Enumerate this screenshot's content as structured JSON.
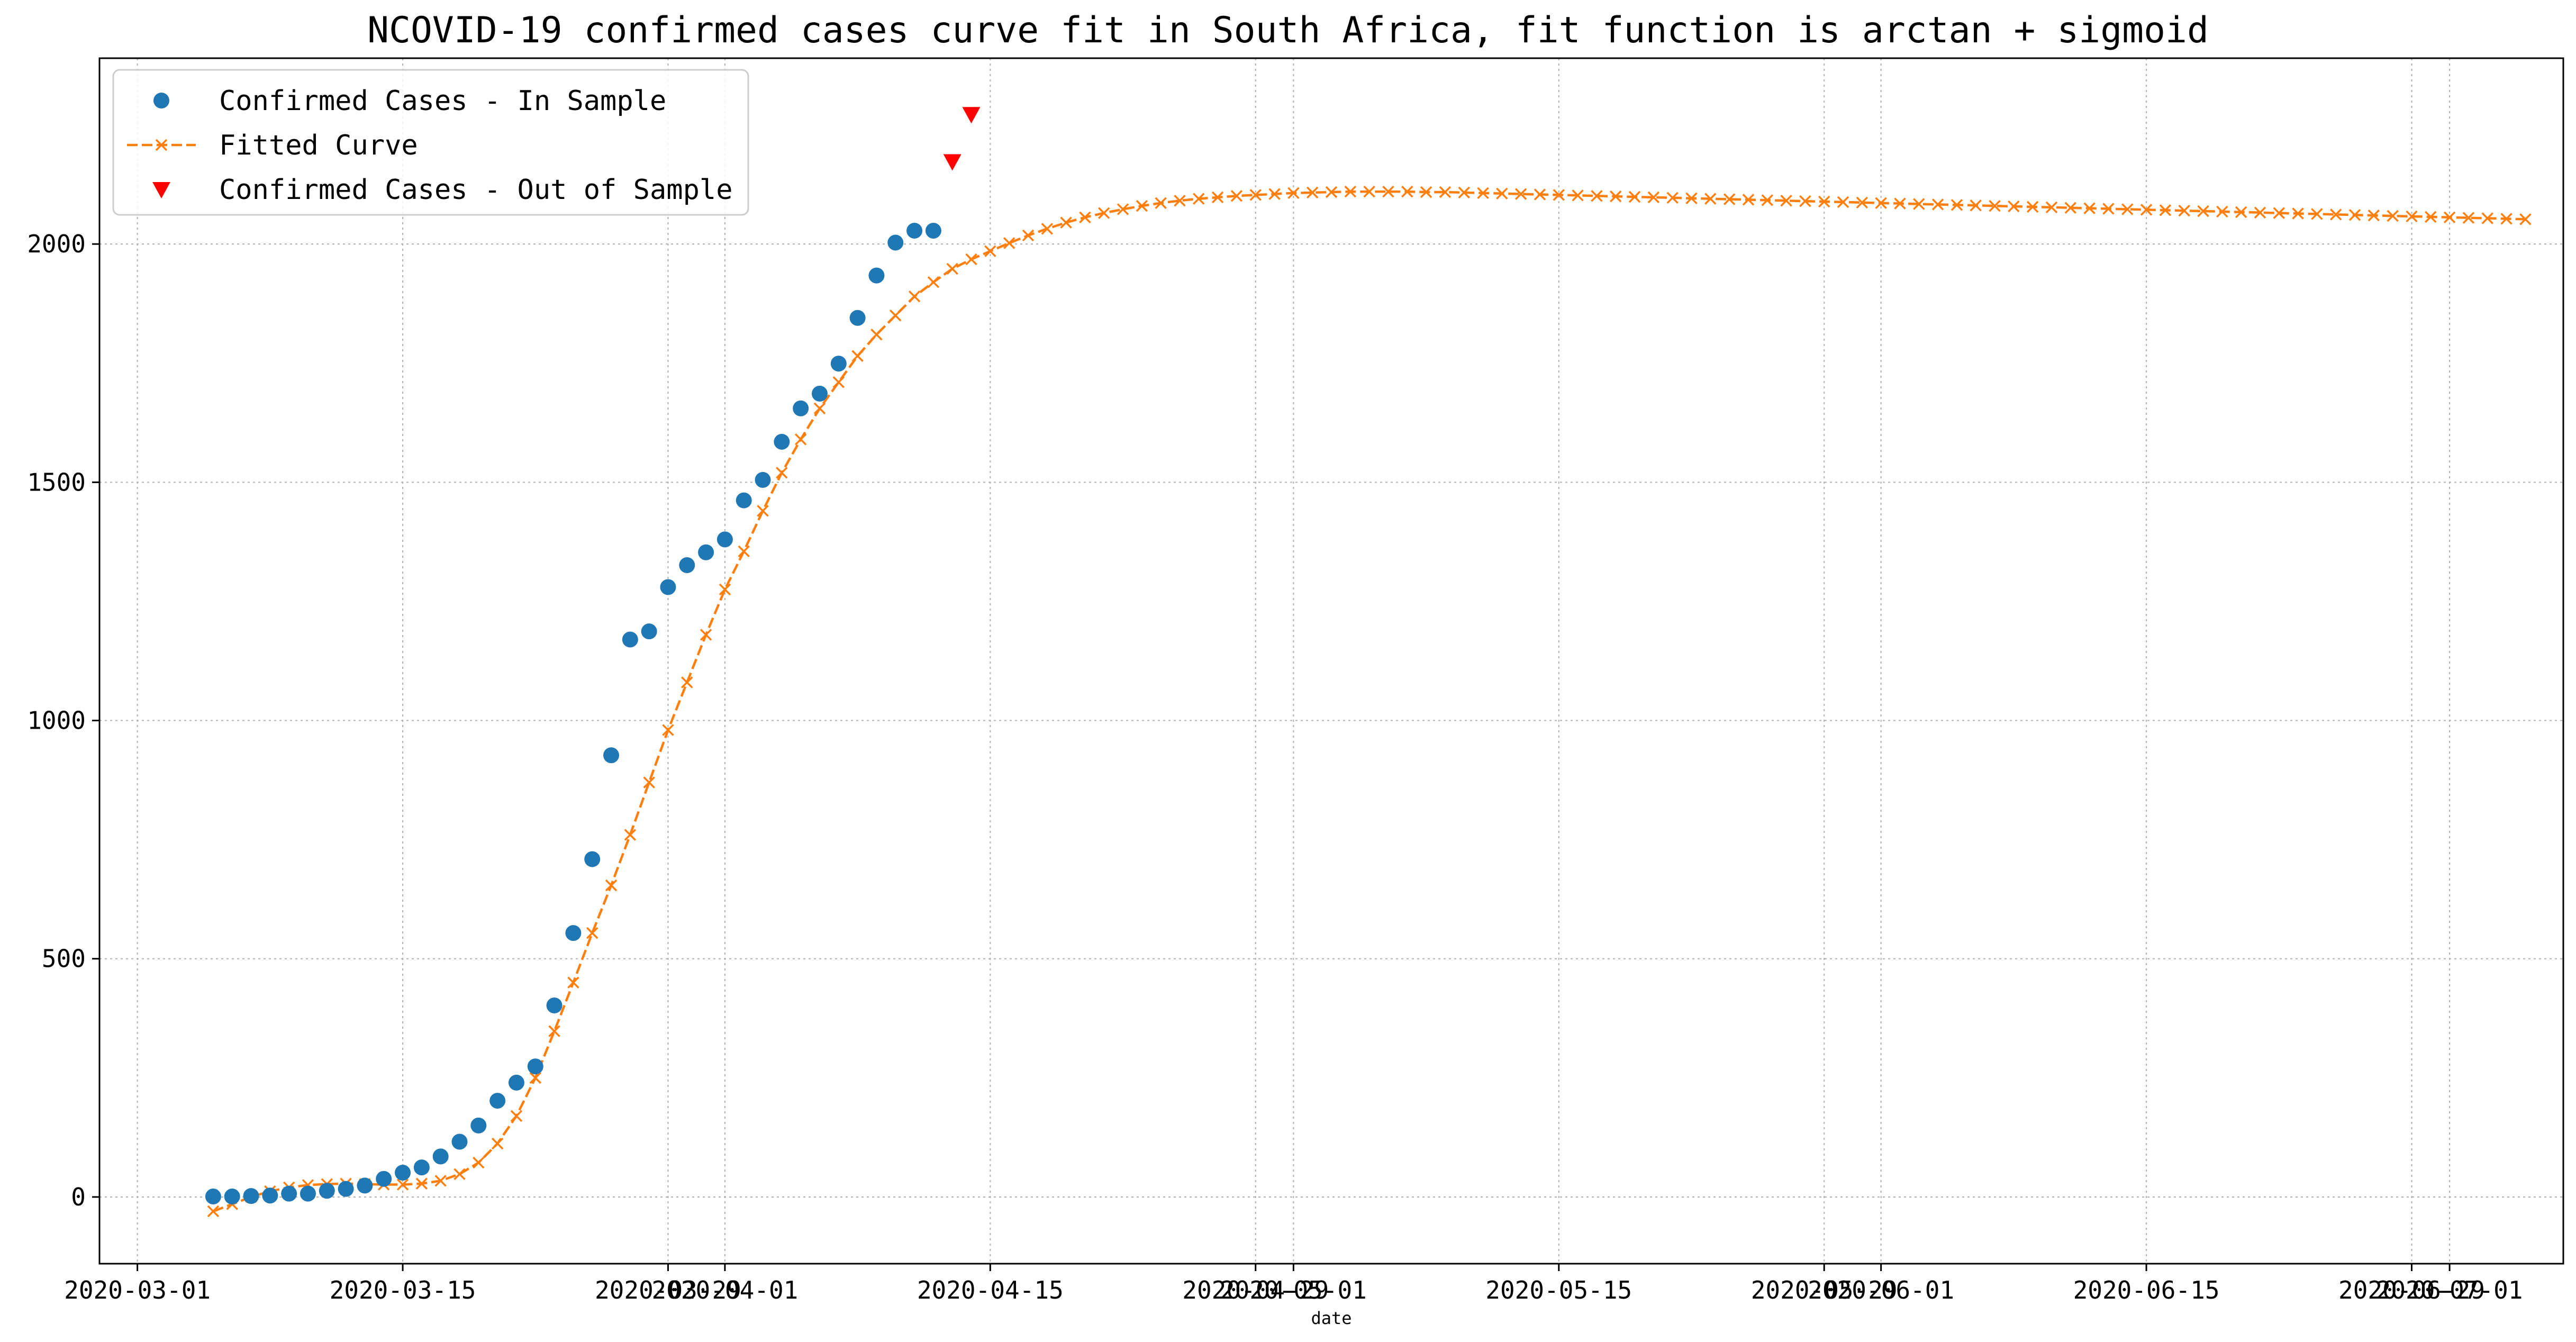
{
  "chart_data": {
    "type": "line",
    "title": "NCOVID-19 confirmed cases curve fit in South Africa, fit function is arctan + sigmoid",
    "xlabel": "date",
    "ylabel": "",
    "xlim": [
      "2020-02-28",
      "2020-07-07"
    ],
    "ylim": [
      -140,
      2390
    ],
    "grid": true,
    "grid_style": "dotted",
    "legend_position": "upper-left",
    "x_tick_labels": [
      "2020-03-01",
      "2020-03-15",
      "2020-03-29",
      "2020-04-01",
      "2020-04-15",
      "2020-04-29",
      "2020-05-01",
      "2020-05-15",
      "2020-05-29",
      "2020-06-01",
      "2020-06-15",
      "2020-06-29",
      "2020-07-01"
    ],
    "y_ticks": [
      0,
      500,
      1000,
      1500,
      2000
    ],
    "series": [
      {
        "name": "Confirmed Cases - In Sample",
        "kind": "scatter",
        "marker": "circle",
        "color": "#1f77b4",
        "x": [
          "2020-03-05",
          "2020-03-06",
          "2020-03-07",
          "2020-03-08",
          "2020-03-09",
          "2020-03-10",
          "2020-03-11",
          "2020-03-12",
          "2020-03-13",
          "2020-03-14",
          "2020-03-15",
          "2020-03-16",
          "2020-03-17",
          "2020-03-18",
          "2020-03-19",
          "2020-03-20",
          "2020-03-21",
          "2020-03-22",
          "2020-03-23",
          "2020-03-24",
          "2020-03-25",
          "2020-03-26",
          "2020-03-27",
          "2020-03-28",
          "2020-03-29",
          "2020-03-30",
          "2020-03-31",
          "2020-04-01",
          "2020-04-02",
          "2020-04-03",
          "2020-04-04",
          "2020-04-05",
          "2020-04-06",
          "2020-04-07",
          "2020-04-08",
          "2020-04-09",
          "2020-04-10",
          "2020-04-11",
          "2020-04-12"
        ],
        "y": [
          1,
          1,
          2,
          3,
          7,
          7,
          13,
          17,
          24,
          38,
          51,
          62,
          85,
          116,
          150,
          202,
          240,
          274,
          402,
          554,
          709,
          927,
          1170,
          1187,
          1280,
          1326,
          1353,
          1380,
          1462,
          1505,
          1585,
          1655,
          1686,
          1749,
          1845,
          1934,
          2003,
          2028,
          2028
        ]
      },
      {
        "name": "Fitted Curve",
        "kind": "line",
        "marker": "x",
        "line_style": "dashed",
        "color": "#ff7f0e",
        "x_start": "2020-03-05",
        "x_end": "2020-07-05",
        "x_step_days": 1,
        "y": [
          -30,
          -15,
          0,
          12,
          20,
          25,
          27,
          28,
          27,
          26,
          26,
          28,
          34,
          48,
          72,
          112,
          170,
          250,
          348,
          450,
          554,
          654,
          760,
          870,
          980,
          1080,
          1180,
          1275,
          1355,
          1440,
          1520,
          1590,
          1655,
          1710,
          1765,
          1810,
          1850,
          1890,
          1920,
          1948,
          1968,
          1985,
          2002,
          2018,
          2032,
          2045,
          2056,
          2065,
          2073,
          2080,
          2086,
          2091,
          2095,
          2098,
          2101,
          2103,
          2105,
          2107,
          2108,
          2109,
          2110,
          2110,
          2110,
          2110,
          2109,
          2109,
          2108,
          2107,
          2106,
          2105,
          2104,
          2103,
          2102,
          2101,
          2100,
          2099,
          2098,
          2097,
          2096,
          2095,
          2094,
          2093,
          2092,
          2091,
          2090,
          2089,
          2088,
          2087,
          2086,
          2085,
          2084,
          2083,
          2082,
          2081,
          2080,
          2079,
          2078,
          2077,
          2076,
          2075,
          2074,
          2073,
          2072,
          2071,
          2070,
          2069,
          2068,
          2067,
          2066,
          2065,
          2064,
          2063,
          2062,
          2061,
          2060,
          2059,
          2058,
          2057,
          2056,
          2055,
          2054,
          2053,
          2052
        ]
      },
      {
        "name": "Confirmed Cases - Out of Sample",
        "kind": "scatter",
        "marker": "triangle-down",
        "color": "#ff0000",
        "x": [
          "2020-04-13",
          "2020-04-14"
        ],
        "y": [
          2173,
          2272
        ]
      }
    ]
  }
}
